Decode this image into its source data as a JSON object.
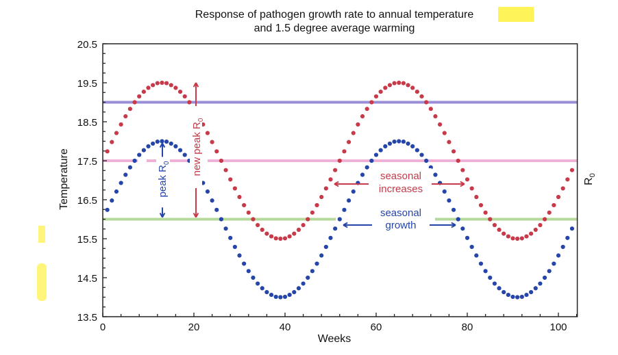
{
  "chart_data": {
    "type": "scatter",
    "title_line1": "Response of pathogen growth rate to annual temperature",
    "title_line2": "and 1.5 degree average warming",
    "xlabel": "Weeks",
    "ylabel": "Temperature",
    "y2label": "R0",
    "xlim": [
      0,
      104
    ],
    "ylim": [
      13.5,
      20.5
    ],
    "xticks": [
      0,
      20,
      40,
      60,
      80,
      100
    ],
    "yticks": [
      13.5,
      14.5,
      15.5,
      16.5,
      17.5,
      18.5,
      19.5,
      20.5
    ],
    "grid": false,
    "x": [
      1,
      2,
      3,
      4,
      5,
      6,
      7,
      8,
      9,
      10,
      11,
      12,
      13,
      14,
      15,
      16,
      17,
      18,
      19,
      20,
      21,
      22,
      23,
      24,
      25,
      26,
      27,
      28,
      29,
      30,
      31,
      32,
      33,
      34,
      35,
      36,
      37,
      38,
      39,
      40,
      41,
      42,
      43,
      44,
      45,
      46,
      47,
      48,
      49,
      50,
      51,
      52,
      53,
      54,
      55,
      56,
      57,
      58,
      59,
      60,
      61,
      62,
      63,
      64,
      65,
      66,
      67,
      68,
      69,
      70,
      71,
      72,
      73,
      74,
      75,
      76,
      77,
      78,
      79,
      80,
      81,
      82,
      83,
      84,
      85,
      86,
      87,
      88,
      89,
      90,
      91,
      92,
      93,
      94,
      95,
      96,
      97,
      98,
      99,
      100,
      101,
      102,
      103
    ],
    "series": [
      {
        "color": "#2545a8",
        "values": [
          16.24,
          16.48,
          16.71,
          16.93,
          17.14,
          17.33,
          17.5,
          17.65,
          17.77,
          17.87,
          17.94,
          17.99,
          18.0,
          17.99,
          17.94,
          17.87,
          17.77,
          17.65,
          17.5,
          17.33,
          17.14,
          16.93,
          16.71,
          16.48,
          16.24,
          16.0,
          15.76,
          15.52,
          15.29,
          15.07,
          14.86,
          14.67,
          14.5,
          14.35,
          14.23,
          14.13,
          14.06,
          14.01,
          14.0,
          14.01,
          14.06,
          14.13,
          14.23,
          14.35,
          14.5,
          14.67,
          14.86,
          15.07,
          15.29,
          15.52,
          15.76,
          16.0,
          16.24,
          16.48,
          16.71,
          16.93,
          17.14,
          17.33,
          17.5,
          17.65,
          17.77,
          17.87,
          17.94,
          17.99,
          18.0,
          17.99,
          17.94,
          17.87,
          17.77,
          17.65,
          17.5,
          17.33,
          17.14,
          16.93,
          16.71,
          16.48,
          16.24,
          16.0,
          15.76,
          15.52,
          15.29,
          15.07,
          14.86,
          14.67,
          14.5,
          14.35,
          14.23,
          14.13,
          14.06,
          14.01,
          14.0,
          14.01,
          14.06,
          14.13,
          14.23,
          14.35,
          14.5,
          14.67,
          14.86,
          15.07,
          15.29,
          15.52,
          15.76
        ]
      },
      {
        "color": "#c73a4a",
        "values": [
          17.74,
          17.98,
          18.21,
          18.43,
          18.64,
          18.83,
          19.0,
          19.15,
          19.27,
          19.37,
          19.44,
          19.49,
          19.5,
          19.49,
          19.44,
          19.37,
          19.27,
          19.15,
          19.0,
          18.83,
          18.64,
          18.43,
          18.21,
          17.98,
          17.74,
          17.5,
          17.26,
          17.02,
          16.79,
          16.57,
          16.36,
          16.17,
          16.0,
          15.85,
          15.73,
          15.63,
          15.56,
          15.51,
          15.5,
          15.51,
          15.56,
          15.63,
          15.73,
          15.85,
          16.0,
          16.17,
          16.36,
          16.57,
          16.79,
          17.02,
          17.26,
          17.5,
          17.74,
          17.98,
          18.21,
          18.43,
          18.64,
          18.83,
          19.0,
          19.15,
          19.27,
          19.37,
          19.44,
          19.49,
          19.5,
          19.49,
          19.44,
          19.37,
          19.27,
          19.15,
          19.0,
          18.83,
          18.64,
          18.43,
          18.21,
          17.98,
          17.74,
          17.5,
          17.26,
          17.02,
          16.79,
          16.57,
          16.36,
          16.17,
          16.0,
          15.85,
          15.73,
          15.63,
          15.56,
          15.51,
          15.5,
          15.51,
          15.56,
          15.63,
          15.73,
          15.85,
          16.0,
          16.17,
          16.36,
          16.57,
          16.79,
          17.02,
          17.26
        ]
      }
    ],
    "reference_lines": [
      {
        "y": 19.0,
        "color": "#9a8fd6"
      },
      {
        "y": 17.5,
        "color": "#efb1d6"
      },
      {
        "y": 16.0,
        "color": "#b5d99a"
      }
    ],
    "annotations": {
      "peak_r0": "peak R",
      "new_peak_r0": "new peak R",
      "subscript": "0",
      "seasonal_increases_1": "seasonal",
      "seasonal_increases_2": "increases",
      "seasonal_growth_1": "seasonal",
      "seasonal_growth_2": "growth"
    },
    "colors": {
      "blue": "#2545a8",
      "red": "#c73a4a",
      "highlight": "#fff200"
    }
  }
}
